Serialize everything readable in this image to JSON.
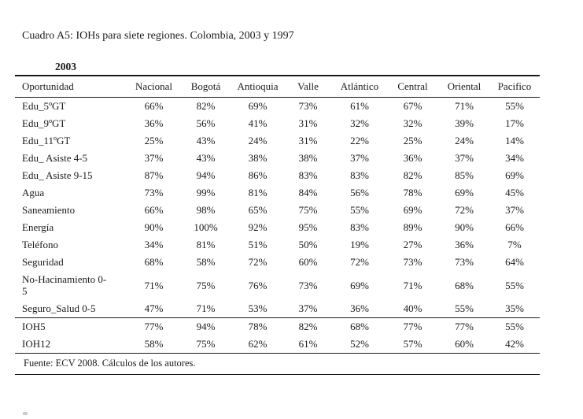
{
  "page": {
    "title": "Cuadro A5: IOHs para siete regiones. Colombia, 2003 y 1997",
    "year_label": "2003",
    "source": "Fuente: ECV 2008. Cálculos de los autores."
  },
  "table": {
    "columns": [
      "Oportunidad",
      "Nacional",
      "Bogotá",
      "Antioquia",
      "Valle",
      "Atlántico",
      "Central",
      "Oriental",
      "Pacifico"
    ],
    "rows": [
      {
        "label": "Edu_5ºGT",
        "values": [
          "66%",
          "82%",
          "69%",
          "73%",
          "61%",
          "67%",
          "71%",
          "55%"
        ]
      },
      {
        "label": "Edu_9ºGT",
        "values": [
          "36%",
          "56%",
          "41%",
          "31%",
          "32%",
          "32%",
          "39%",
          "17%"
        ]
      },
      {
        "label": "Edu_11ºGT",
        "values": [
          "25%",
          "43%",
          "24%",
          "31%",
          "22%",
          "25%",
          "24%",
          "14%"
        ]
      },
      {
        "label": "Edu_ Asiste 4-5",
        "values": [
          "37%",
          "43%",
          "38%",
          "38%",
          "37%",
          "36%",
          "37%",
          "34%"
        ]
      },
      {
        "label": "Edu_ Asiste 9-15",
        "values": [
          "87%",
          "94%",
          "86%",
          "83%",
          "83%",
          "82%",
          "85%",
          "69%"
        ]
      },
      {
        "label": "Agua",
        "values": [
          "73%",
          "99%",
          "81%",
          "84%",
          "56%",
          "78%",
          "69%",
          "45%"
        ]
      },
      {
        "label": "Saneamiento",
        "values": [
          "66%",
          "98%",
          "65%",
          "75%",
          "55%",
          "69%",
          "72%",
          "37%"
        ]
      },
      {
        "label": "Energía",
        "values": [
          "90%",
          "100%",
          "92%",
          "95%",
          "83%",
          "89%",
          "90%",
          "66%"
        ]
      },
      {
        "label": "Teléfono",
        "values": [
          "34%",
          "81%",
          "51%",
          "50%",
          "19%",
          "27%",
          "36%",
          "7%"
        ]
      },
      {
        "label": "Seguridad",
        "values": [
          "68%",
          "58%",
          "72%",
          "60%",
          "72%",
          "73%",
          "73%",
          "64%"
        ]
      },
      {
        "label": "No-Hacinamiento 0-5",
        "label_lines": [
          "No-Hacinamiento 0-",
          "5"
        ],
        "values": [
          "71%",
          "75%",
          "76%",
          "73%",
          "69%",
          "71%",
          "68%",
          "55%"
        ]
      },
      {
        "label": "Seguro_Salud 0-5",
        "values": [
          "47%",
          "71%",
          "53%",
          "37%",
          "36%",
          "40%",
          "55%",
          "35%"
        ]
      }
    ],
    "summary_rows": [
      {
        "label": "IOH5",
        "values": [
          "77%",
          "94%",
          "78%",
          "82%",
          "68%",
          "77%",
          "77%",
          "55%"
        ]
      },
      {
        "label": "IOH12",
        "values": [
          "58%",
          "75%",
          "62%",
          "61%",
          "52%",
          "57%",
          "60%",
          "42%"
        ]
      }
    ]
  }
}
